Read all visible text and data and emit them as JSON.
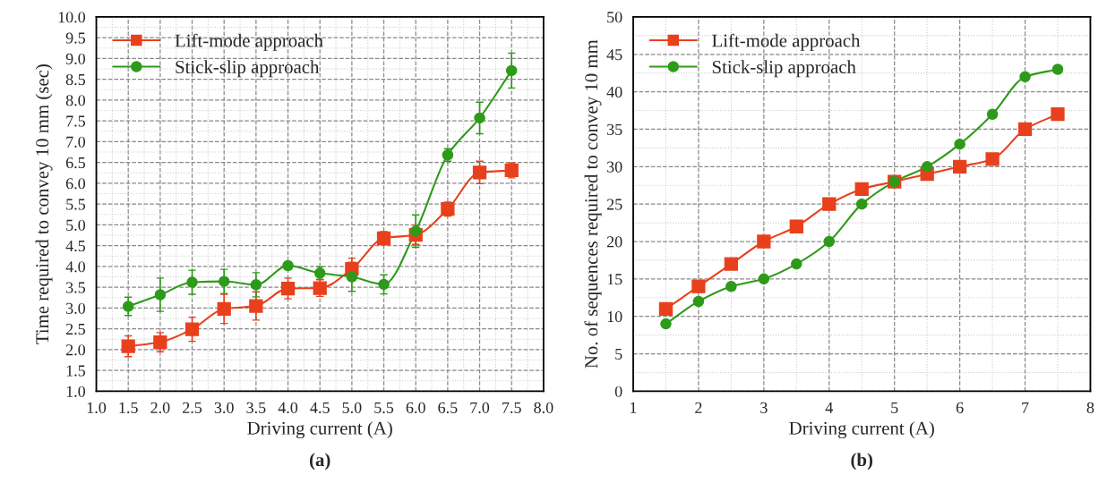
{
  "chart_data": [
    {
      "type": "line",
      "xlabel": "Driving current (A)",
      "ylabel": "Time required to convey 10 mm (sec)",
      "annotations": [
        "(a)"
      ],
      "x": [
        1.5,
        2.0,
        2.5,
        3.0,
        3.5,
        4.0,
        4.5,
        5.0,
        5.5,
        6.0,
        6.5,
        7.0,
        7.5
      ],
      "series": [
        {
          "name": "Lift-mode approach",
          "color": "#e8401c",
          "marker": "square",
          "values": [
            2.08,
            2.18,
            2.49,
            2.98,
            3.05,
            3.47,
            3.48,
            3.94,
            4.68,
            4.76,
            5.38,
            6.26,
            6.31
          ],
          "errors": [
            0.25,
            0.23,
            0.29,
            0.35,
            0.34,
            0.25,
            0.2,
            0.26,
            0.16,
            0.23,
            0.17,
            0.27,
            0.18
          ]
        },
        {
          "name": "Stick-slip approach",
          "color": "#2e9a1a",
          "marker": "circle",
          "values": [
            3.04,
            3.32,
            3.62,
            3.64,
            3.56,
            4.02,
            3.84,
            3.75,
            3.57,
            4.85,
            6.68,
            7.57,
            8.71
          ],
          "errors": [
            0.22,
            0.4,
            0.29,
            0.29,
            0.29,
            0.08,
            0.15,
            0.35,
            0.23,
            0.39,
            0.15,
            0.38,
            0.42
          ]
        }
      ],
      "xlim": [
        1.0,
        8.0
      ],
      "xticks": [
        {
          "value": 1.0,
          "label": "1.0"
        },
        1.5,
        {
          "value": 2.0,
          "label": "2.0"
        },
        2.5,
        {
          "value": 3.0,
          "label": "3.0"
        },
        3.5,
        {
          "value": 4.0,
          "label": "4.0"
        },
        4.5,
        {
          "value": 5.0,
          "label": "5.0"
        },
        5.5,
        {
          "value": 6.0,
          "label": "6.0"
        },
        6.5,
        {
          "value": 7.0,
          "label": "7.0"
        },
        7.5,
        {
          "value": 8.0,
          "label": "8.0"
        }
      ],
      "ylim": [
        1.0,
        10.0
      ],
      "yticks": [
        {
          "value": 1.0,
          "label": "1.0"
        },
        1.5,
        {
          "value": 2.0,
          "label": "2.0"
        },
        2.5,
        {
          "value": 3.0,
          "label": "3.0"
        },
        3.5,
        {
          "value": 4.0,
          "label": "4.0"
        },
        4.5,
        {
          "value": 5.0,
          "label": "5.0"
        },
        5.5,
        {
          "value": 6.0,
          "label": "6.0"
        },
        6.5,
        {
          "value": 7.0,
          "label": "7.0"
        },
        7.5,
        {
          "value": 8.0,
          "label": "8.0"
        },
        8.5,
        {
          "value": 9.0,
          "label": "9.0"
        },
        9.5,
        {
          "value": 10.0,
          "label": "10.0"
        }
      ],
      "grid": true,
      "legend": "top left"
    },
    {
      "type": "line",
      "xlabel": "Driving current (A)",
      "ylabel": "No. of sequences required to convey 10 mm",
      "annotations": [
        "(b)"
      ],
      "x": [
        1.5,
        2.0,
        2.5,
        3.0,
        3.5,
        4.0,
        4.5,
        5.0,
        5.5,
        6.0,
        6.5,
        7.0,
        7.5
      ],
      "series": [
        {
          "name": "Lift-mode approach",
          "color": "#e8401c",
          "marker": "square",
          "values": [
            11,
            14,
            17,
            20,
            22,
            25,
            27,
            28,
            29,
            30,
            31,
            35,
            37
          ]
        },
        {
          "name": "Stick-slip approach",
          "color": "#2e9a1a",
          "marker": "circle",
          "values": [
            9,
            12,
            14,
            15,
            17,
            20,
            25,
            28,
            30,
            33,
            37,
            42,
            43
          ]
        }
      ],
      "xlim": [
        1,
        8
      ],
      "xticks": [
        1,
        2,
        3,
        4,
        5,
        6,
        7,
        8
      ],
      "ylim": [
        0,
        50
      ],
      "yticks": [
        0,
        5,
        10,
        15,
        20,
        25,
        30,
        35,
        40,
        45,
        50
      ],
      "grid": true,
      "legend": "top left"
    }
  ]
}
